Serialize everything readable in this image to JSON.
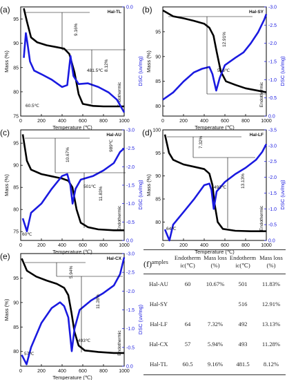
{
  "colors": {
    "mass": "#000000",
    "dsc": "#1a1ae0",
    "text": "#111111"
  },
  "chart_data": [
    {
      "type": "line",
      "panel_label": "(a)",
      "sample": "Hal-TL",
      "xlabel": "Temperature (℃)",
      "ylabel": "Mass (%)",
      "y2label": "DSC (uv/mg)",
      "dsc_note": "Endothermic",
      "xlim": [
        0,
        1000
      ],
      "ylim": [
        75,
        97.5
      ],
      "y2lim": [
        3.0,
        0.0
      ],
      "x_ticks": [
        "0",
        "200",
        "400",
        "600",
        "800",
        "1000"
      ],
      "y_ticks": [
        "75",
        "80",
        "85",
        "90",
        "95"
      ],
      "y2_ticks": [
        "0.0",
        "-0.5",
        "-1.0",
        "-1.5",
        "-2.0",
        "-2.5",
        "-3.0"
      ],
      "mass_curve": [
        [
          30,
          97.2
        ],
        [
          60,
          94.5
        ],
        [
          100,
          91.2
        ],
        [
          160,
          90.2
        ],
        [
          250,
          89.6
        ],
        [
          350,
          89.2
        ],
        [
          420,
          88.9
        ],
        [
          470,
          87.8
        ],
        [
          520,
          84
        ],
        [
          560,
          79.5
        ],
        [
          600,
          77.5
        ],
        [
          700,
          77.1
        ],
        [
          800,
          77.0
        ],
        [
          1000,
          77.0
        ]
      ],
      "dsc_curve": [
        [
          30,
          1.4
        ],
        [
          50,
          0.72
        ],
        [
          65,
          1.0
        ],
        [
          90,
          1.5
        ],
        [
          130,
          1.75
        ],
        [
          200,
          1.85
        ],
        [
          300,
          2.0
        ],
        [
          400,
          2.2
        ],
        [
          450,
          2.15
        ],
        [
          481.5,
          1.35
        ],
        [
          510,
          1.9
        ],
        [
          560,
          2.12
        ],
        [
          650,
          2.1
        ],
        [
          750,
          2.2
        ],
        [
          850,
          2.35
        ],
        [
          930,
          2.55
        ],
        [
          980,
          2.8
        ],
        [
          1000,
          2.9
        ]
      ],
      "annotations": [
        {
          "text": "9.16%"
        },
        {
          "text": "8.12%"
        },
        {
          "text": "481.5℃"
        },
        {
          "text": "60.5℃"
        }
      ]
    },
    {
      "type": "line",
      "panel_label": "(b)",
      "sample": "Hal-SY",
      "xlabel": "Temperature (℃)",
      "ylabel": "Mass (%)",
      "y2label": "DSC (uv/mg)",
      "dsc_note": "Endothermic",
      "xlim": [
        0,
        1000
      ],
      "ylim": [
        78,
        100
      ],
      "y2lim": [
        0.0,
        -3.0
      ],
      "x_ticks": [
        "0",
        "200",
        "400",
        "600",
        "800",
        "1000"
      ],
      "y_ticks": [
        "80",
        "85",
        "90",
        "95"
      ],
      "y2_ticks": [
        "0.0",
        "-0.5",
        "-1.0",
        "-1.5",
        "-2.0",
        "-2.5",
        "-3.0"
      ],
      "mass_curve": [
        [
          0,
          99.3
        ],
        [
          100,
          98.1
        ],
        [
          200,
          97.7
        ],
        [
          300,
          97.2
        ],
        [
          400,
          96.6
        ],
        [
          450,
          95.8
        ],
        [
          490,
          94.2
        ],
        [
          520,
          91
        ],
        [
          560,
          87
        ],
        [
          610,
          85
        ],
        [
          700,
          84.3
        ],
        [
          800,
          83.6
        ],
        [
          900,
          83.2
        ],
        [
          1000,
          82.8
        ]
      ],
      "dsc_curve": [
        [
          0,
          -0.45
        ],
        [
          100,
          -0.65
        ],
        [
          200,
          -0.95
        ],
        [
          300,
          -1.2
        ],
        [
          380,
          -1.3
        ],
        [
          450,
          -1.35
        ],
        [
          480,
          -1.15
        ],
        [
          516,
          -0.7
        ],
        [
          550,
          -1.05
        ],
        [
          600,
          -1.4
        ],
        [
          700,
          -1.6
        ],
        [
          780,
          -1.75
        ],
        [
          850,
          -2.0
        ],
        [
          920,
          -2.3
        ],
        [
          980,
          -2.65
        ],
        [
          1000,
          -2.8
        ]
      ],
      "annotations": [
        {
          "text": "12.91%"
        },
        {
          "text": "516℃"
        }
      ]
    },
    {
      "type": "line",
      "panel_label": "(c)",
      "sample": "Hal-AU",
      "xlabel": "Temperature (℃)",
      "ylabel": "Mass (%)",
      "y2label": "DSC (uv/mg)",
      "dsc_note": "Endothermic",
      "xlim": [
        0,
        1000
      ],
      "ylim": [
        73,
        98
      ],
      "y2lim": [
        0.0,
        -3.0
      ],
      "x_ticks": [
        "0",
        "200",
        "400",
        "600",
        "800",
        "1000"
      ],
      "y_ticks": [
        "75",
        "80",
        "85",
        "90",
        "95"
      ],
      "y2_ticks": [
        "0.0",
        "-0.5",
        "-1.0",
        "-1.5",
        "-2.0",
        "-2.5",
        "-3.0"
      ],
      "mass_curve": [
        [
          20,
          97
        ],
        [
          60,
          91
        ],
        [
          100,
          89
        ],
        [
          200,
          88
        ],
        [
          300,
          87.5
        ],
        [
          400,
          87
        ],
        [
          460,
          86.5
        ],
        [
          500,
          85
        ],
        [
          540,
          80
        ],
        [
          580,
          77
        ],
        [
          650,
          76
        ],
        [
          750,
          75.5
        ],
        [
          900,
          75.3
        ],
        [
          1000,
          75.3
        ]
      ],
      "dsc_curve": [
        [
          20,
          -0.6
        ],
        [
          60,
          -0.25
        ],
        [
          100,
          -0.75
        ],
        [
          200,
          -1.0
        ],
        [
          300,
          -1.4
        ],
        [
          400,
          -1.75
        ],
        [
          450,
          -1.8
        ],
        [
          480,
          -1.5
        ],
        [
          501,
          -1.0
        ],
        [
          530,
          -1.4
        ],
        [
          580,
          -1.65
        ],
        [
          700,
          -1.75
        ],
        [
          800,
          -1.9
        ],
        [
          900,
          -2.1
        ],
        [
          960,
          -2.4
        ],
        [
          1000,
          -2.5
        ]
      ],
      "annotations": [
        {
          "text": "10.67%"
        },
        {
          "text": "11.83%"
        },
        {
          "text": "501℃"
        },
        {
          "text": "60℃"
        },
        {
          "text": "989℃"
        }
      ]
    },
    {
      "type": "line",
      "panel_label": "(d)",
      "sample": "Hal-LF",
      "xlabel": "Temperature (℃)",
      "ylabel": "Mass (%)",
      "y2label": "DSC (uv/mg)",
      "dsc_note": "Endothermic",
      "xlim": [
        0,
        1000
      ],
      "ylim": [
        76,
        100
      ],
      "y2lim": [
        0.0,
        -3.5
      ],
      "x_ticks": [
        "0",
        "200",
        "400",
        "600",
        "800",
        "1000"
      ],
      "y_ticks": [
        "80",
        "85",
        "90",
        "95",
        "100"
      ],
      "y2_ticks": [
        "0.0",
        "-0.5",
        "-1.0",
        "-1.5",
        "-2.0",
        "-2.5",
        "-3.0",
        "-3.5"
      ],
      "mass_curve": [
        [
          20,
          99
        ],
        [
          60,
          95
        ],
        [
          100,
          93.5
        ],
        [
          200,
          92.5
        ],
        [
          300,
          92
        ],
        [
          400,
          91.5
        ],
        [
          450,
          90.5
        ],
        [
          480,
          88
        ],
        [
          500,
          84
        ],
        [
          530,
          80
        ],
        [
          580,
          78.5
        ],
        [
          700,
          78.1
        ],
        [
          850,
          78
        ],
        [
          1000,
          78
        ]
      ],
      "dsc_curve": [
        [
          20,
          -0.35
        ],
        [
          64,
          0.0
        ],
        [
          100,
          -0.5
        ],
        [
          200,
          -0.9
        ],
        [
          300,
          -1.3
        ],
        [
          400,
          -1.75
        ],
        [
          450,
          -1.8
        ],
        [
          470,
          -1.6
        ],
        [
          492,
          -1.0
        ],
        [
          520,
          -1.55
        ],
        [
          600,
          -1.85
        ],
        [
          700,
          -2.1
        ],
        [
          800,
          -2.3
        ],
        [
          900,
          -2.55
        ],
        [
          960,
          -2.8
        ],
        [
          1000,
          -3.05
        ]
      ],
      "annotations": [
        {
          "text": "7.32%"
        },
        {
          "text": "13.13%"
        },
        {
          "text": "492℃"
        },
        {
          "text": "64℃"
        }
      ]
    },
    {
      "type": "line",
      "panel_label": "(e)",
      "sample": "Hal-CX",
      "xlabel": "Temperature (℃)",
      "ylabel": "Mass (%)",
      "y2label": "DSC (uv/mg)",
      "dsc_note": "Endothermic",
      "xlim": [
        0,
        1000
      ],
      "ylim": [
        77,
        100
      ],
      "y2lim": [
        0.0,
        -3.0
      ],
      "x_ticks": [
        "0",
        "200",
        "400",
        "600",
        "800",
        "1000"
      ],
      "y_ticks": [
        "80",
        "85",
        "90",
        "95"
      ],
      "y2_ticks": [
        "0.0",
        "-0.5",
        "-1.0",
        "-1.5",
        "-2.0",
        "-2.5",
        "-3.0"
      ],
      "mass_curve": [
        [
          10,
          99
        ],
        [
          60,
          96.5
        ],
        [
          150,
          95.3
        ],
        [
          250,
          94.5
        ],
        [
          350,
          93.8
        ],
        [
          420,
          93
        ],
        [
          460,
          91.5
        ],
        [
          490,
          88
        ],
        [
          520,
          84
        ],
        [
          560,
          81.2
        ],
        [
          620,
          80.2
        ],
        [
          750,
          79.9
        ],
        [
          900,
          79.7
        ],
        [
          1000,
          79.7
        ]
      ],
      "dsc_curve": [
        [
          10,
          -0.3
        ],
        [
          57,
          -0.05
        ],
        [
          100,
          -0.5
        ],
        [
          200,
          -1.15
        ],
        [
          300,
          -1.55
        ],
        [
          380,
          -1.7
        ],
        [
          420,
          -1.6
        ],
        [
          460,
          -1.3
        ],
        [
          493,
          -0.4
        ],
        [
          520,
          -1.0
        ],
        [
          570,
          -1.5
        ],
        [
          680,
          -1.75
        ],
        [
          800,
          -1.95
        ],
        [
          900,
          -2.15
        ],
        [
          960,
          -2.45
        ],
        [
          1000,
          -2.9
        ]
      ],
      "annotations": [
        {
          "text": "5.94%"
        },
        {
          "text": "11.28%"
        },
        {
          "text": "493℃"
        },
        {
          "text": "57℃"
        }
      ]
    }
  ],
  "table": {
    "panel_label": "(f)",
    "headers": [
      "samples",
      "Endotherm ic(℃)",
      "Mass loss (%)",
      "Endotherm ic(℃)",
      "Mass loss (%)"
    ],
    "rows": [
      [
        "Hal-AU",
        "60",
        "10.67%",
        "501",
        "11.83%"
      ],
      [
        "Hal-SY",
        "",
        "",
        "516",
        "12.91%"
      ],
      [
        "Hal-LF",
        "64",
        "7.32%",
        "492",
        "13.13%"
      ],
      [
        "Hal-CX",
        "57",
        "5.94%",
        "493",
        "11.28%"
      ],
      [
        "Hal-TL",
        "60.5",
        "9.16%",
        "481.5",
        "8.12%"
      ]
    ]
  }
}
